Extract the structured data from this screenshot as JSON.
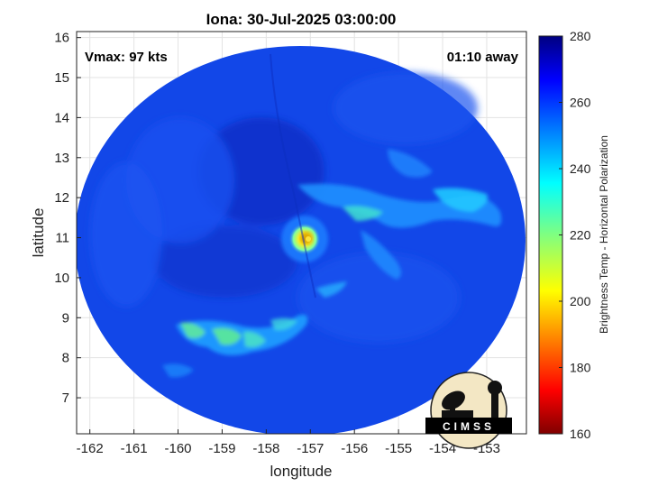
{
  "header": {
    "title": "Iona: 30-Jul-2025 03:00:00",
    "vmax_label": "Vmax: 97 kts",
    "away_label": "01:10 away"
  },
  "axes": {
    "xlabel": "longitude",
    "ylabel": "latitude",
    "x_ticks": [
      "-162",
      "-161",
      "-160",
      "-159",
      "-158",
      "-157",
      "-156",
      "-155",
      "-154",
      "-153"
    ],
    "y_ticks": [
      "7",
      "8",
      "9",
      "10",
      "11",
      "12",
      "13",
      "14",
      "15",
      "16"
    ],
    "xlim": [
      -162.3,
      -152.1
    ],
    "ylim": [
      6.1,
      16.15
    ]
  },
  "colorbar": {
    "label": "Brightness Temp - Horizontal Polarization",
    "ticks": [
      "160",
      "180",
      "200",
      "220",
      "240",
      "260",
      "280"
    ],
    "range": [
      160,
      280
    ]
  },
  "storm": {
    "center_lon": -157.0,
    "center_lat": 11.0,
    "eye_temp": 205
  },
  "swath": {
    "background_temp": 258
  },
  "logo": {
    "text": "CIMSS"
  },
  "colors": {
    "cold": "#800000",
    "warm": "#000080",
    "swath_base": "#0f3fe6"
  }
}
